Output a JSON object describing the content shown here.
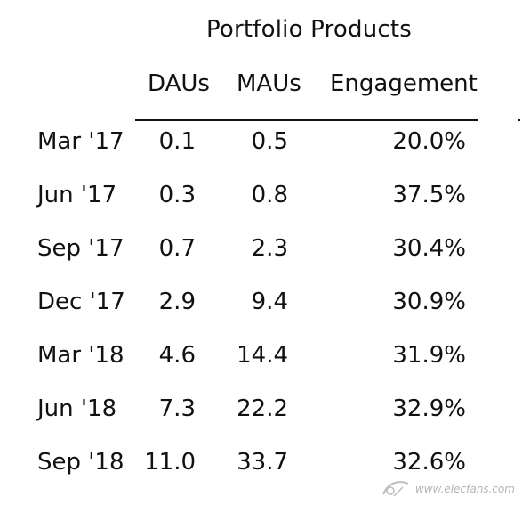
{
  "table": {
    "title": "Portfolio Products",
    "columns": [
      "DAUs",
      "MAUs",
      "Engagement"
    ],
    "rows": [
      {
        "period": "Mar '17",
        "daus": "0.1",
        "maus": "0.5",
        "engagement": "20.0%"
      },
      {
        "period": "Jun '17",
        "daus": "0.3",
        "maus": "0.8",
        "engagement": "37.5%"
      },
      {
        "period": "Sep '17",
        "daus": "0.7",
        "maus": "2.3",
        "engagement": "30.4%"
      },
      {
        "period": "Dec '17",
        "daus": "2.9",
        "maus": "9.4",
        "engagement": "30.9%"
      },
      {
        "period": "Mar '18",
        "daus": "4.6",
        "maus": "14.4",
        "engagement": "31.9%"
      },
      {
        "period": "Jun '18",
        "daus": "7.3",
        "maus": "22.2",
        "engagement": "32.9%"
      },
      {
        "period": "Sep '18",
        "daus": "11.0",
        "maus": "33.7",
        "engagement": "32.6%"
      }
    ]
  },
  "watermark": {
    "text": "www.elecfans.com"
  }
}
